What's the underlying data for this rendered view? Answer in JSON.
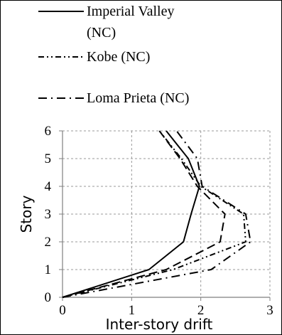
{
  "chart_data": {
    "type": "line",
    "title": "",
    "xlabel": "Inter-story drift",
    "ylabel": "Story",
    "xlim": [
      0,
      3
    ],
    "ylim": [
      0,
      6
    ],
    "xticks": [
      "0",
      "1",
      "2",
      "3"
    ],
    "yticks": [
      "0",
      "1",
      "2",
      "3",
      "4",
      "5",
      "6"
    ],
    "grid": true,
    "legend_position": "top",
    "series": [
      {
        "name": "Imperial Valley (NC)",
        "style": "solid",
        "color": "#000000",
        "points": [
          [
            0,
            0
          ],
          [
            1.25,
            1
          ],
          [
            1.75,
            2
          ],
          [
            1.86,
            3
          ],
          [
            1.98,
            4
          ],
          [
            1.82,
            5
          ],
          [
            1.5,
            6
          ]
        ]
      },
      {
        "name": "Kobe (NC)",
        "style": "dash-dot-dot",
        "color": "#000000",
        "points": [
          [
            0,
            0
          ],
          [
            1.6,
            1
          ],
          [
            2.65,
            2
          ],
          [
            2.62,
            3
          ],
          [
            2.0,
            4
          ],
          [
            1.72,
            5
          ],
          [
            1.4,
            6
          ]
        ]
      },
      {
        "name": "Loma Prieta (NC)",
        "style": "dash-dot",
        "color": "#000000",
        "points": [
          [
            0,
            0
          ],
          [
            2.15,
            1
          ],
          [
            2.72,
            2
          ],
          [
            2.65,
            3
          ],
          [
            2.02,
            4
          ],
          [
            1.95,
            5
          ],
          [
            1.65,
            6
          ]
        ]
      },
      {
        "name": "",
        "style": "long-dash",
        "color": "#000000",
        "points": [
          [
            0,
            0
          ],
          [
            1.5,
            1
          ],
          [
            2.28,
            2
          ],
          [
            2.35,
            3
          ],
          [
            1.95,
            4
          ],
          [
            1.7,
            5
          ],
          [
            1.4,
            6
          ]
        ]
      }
    ]
  }
}
